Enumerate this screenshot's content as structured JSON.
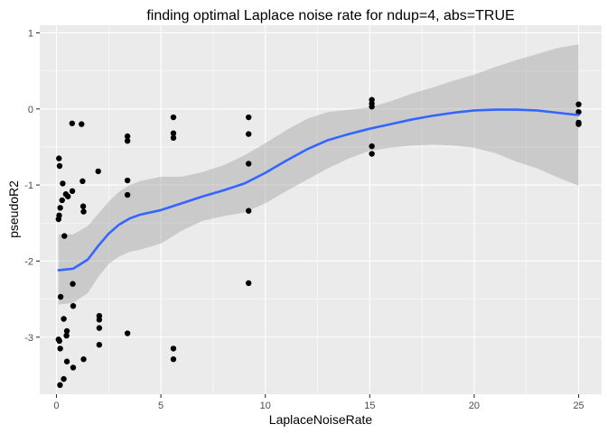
{
  "chart_data": {
    "type": "scatter",
    "title": "finding optimal Laplace noise rate for ndup=4, abs=TRUE",
    "xlabel": "LaplaceNoiseRate",
    "ylabel": "pseudoR2",
    "xlim": [
      -0.8,
      26.1
    ],
    "ylim": [
      -3.75,
      1.1
    ],
    "x_ticks": [
      0,
      5,
      10,
      15,
      20,
      25
    ],
    "x_tick_labels": [
      "0",
      "5",
      "10",
      "15",
      "20",
      "25"
    ],
    "y_ticks": [
      1,
      0,
      -1,
      -2,
      -3
    ],
    "y_tick_labels": [
      "1",
      "0",
      "-1",
      "-2",
      "-3"
    ],
    "grid": true,
    "legend": "none",
    "colors": {
      "panel_background": "#ebebeb",
      "grid_major": "#ffffff",
      "points": "#000000",
      "smooth_line": "#3366ff",
      "confidence_band": "#999999"
    },
    "points": [
      [
        0.12,
        -0.65
      ],
      [
        0.15,
        -0.75
      ],
      [
        0.1,
        -1.45
      ],
      [
        0.13,
        -1.4
      ],
      [
        0.18,
        -1.3
      ],
      [
        0.27,
        -1.2
      ],
      [
        0.3,
        -0.98
      ],
      [
        0.38,
        -1.67
      ],
      [
        0.2,
        -2.47
      ],
      [
        0.35,
        -2.76
      ],
      [
        0.5,
        -2.92
      ],
      [
        0.48,
        -2.98
      ],
      [
        0.1,
        -3.03
      ],
      [
        0.14,
        -3.05
      ],
      [
        0.18,
        -3.15
      ],
      [
        0.5,
        -3.32
      ],
      [
        0.35,
        -3.55
      ],
      [
        0.17,
        -3.63
      ],
      [
        0.45,
        -1.12
      ],
      [
        0.55,
        -1.15
      ],
      [
        0.75,
        -0.19
      ],
      [
        0.76,
        -1.08
      ],
      [
        0.78,
        -2.3
      ],
      [
        0.8,
        -2.59
      ],
      [
        0.8,
        -3.4
      ],
      [
        1.2,
        -0.2
      ],
      [
        1.25,
        -0.95
      ],
      [
        1.28,
        -1.28
      ],
      [
        1.3,
        -1.35
      ],
      [
        1.3,
        -3.29
      ],
      [
        2.0,
        -0.82
      ],
      [
        2.05,
        -2.72
      ],
      [
        2.05,
        -2.77
      ],
      [
        2.05,
        -2.88
      ],
      [
        2.05,
        -3.1
      ],
      [
        3.4,
        -0.36
      ],
      [
        3.4,
        -0.42
      ],
      [
        3.4,
        -0.94
      ],
      [
        3.4,
        -1.13
      ],
      [
        3.4,
        -2.95
      ],
      [
        5.6,
        -0.11
      ],
      [
        5.6,
        -0.32
      ],
      [
        5.6,
        -0.38
      ],
      [
        5.6,
        -3.15
      ],
      [
        5.6,
        -3.29
      ],
      [
        9.2,
        -0.11
      ],
      [
        9.2,
        -0.33
      ],
      [
        9.2,
        -0.72
      ],
      [
        9.2,
        -1.34
      ],
      [
        9.2,
        -2.29
      ],
      [
        15.1,
        0.12
      ],
      [
        15.1,
        0.07
      ],
      [
        15.1,
        0.03
      ],
      [
        15.1,
        -0.49
      ],
      [
        15.1,
        -0.59
      ],
      [
        25.0,
        0.06
      ],
      [
        25.0,
        -0.04
      ],
      [
        25.0,
        -0.18
      ],
      [
        25.0,
        -0.2
      ]
    ],
    "smooth": {
      "x": [
        0.1,
        0.8,
        1.5,
        2.0,
        2.5,
        3.0,
        3.5,
        4.0,
        5.0,
        6.0,
        7.0,
        8.0,
        9.0,
        10.0,
        11.0,
        12.0,
        13.0,
        14.0,
        15.0,
        16.0,
        17.0,
        18.0,
        19.0,
        20.0,
        21.0,
        22.0,
        23.0,
        24.0,
        25.0
      ],
      "y": [
        -2.12,
        -2.1,
        -1.98,
        -1.8,
        -1.64,
        -1.52,
        -1.44,
        -1.39,
        -1.33,
        -1.24,
        -1.15,
        -1.07,
        -0.98,
        -0.84,
        -0.68,
        -0.53,
        -0.41,
        -0.33,
        -0.26,
        -0.2,
        -0.14,
        -0.09,
        -0.05,
        -0.02,
        -0.01,
        -0.01,
        -0.02,
        -0.05,
        -0.08
      ],
      "lower": [
        -2.57,
        -2.55,
        -2.42,
        -2.21,
        -2.04,
        -1.94,
        -1.88,
        -1.85,
        -1.77,
        -1.6,
        -1.47,
        -1.41,
        -1.36,
        -1.24,
        -1.08,
        -0.93,
        -0.78,
        -0.65,
        -0.55,
        -0.51,
        -0.48,
        -0.47,
        -0.48,
        -0.51,
        -0.58,
        -0.69,
        -0.78,
        -0.9,
        -1.01
      ],
      "upper": [
        -1.65,
        -1.65,
        -1.54,
        -1.38,
        -1.22,
        -1.09,
        -1.0,
        -0.95,
        -0.89,
        -0.89,
        -0.83,
        -0.74,
        -0.61,
        -0.45,
        -0.28,
        -0.13,
        -0.04,
        -0.01,
        0.02,
        0.1,
        0.2,
        0.28,
        0.37,
        0.45,
        0.55,
        0.64,
        0.72,
        0.8,
        0.85
      ]
    }
  }
}
